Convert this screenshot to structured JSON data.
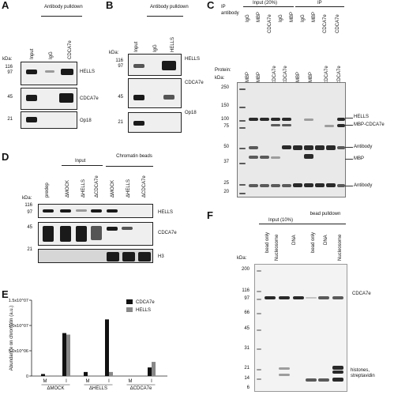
{
  "panels": {
    "A": {
      "letter": "A",
      "header": "Antibody pulldown",
      "lanes": [
        "Input",
        "IgG",
        "CDCA7e"
      ],
      "kda": "kDa:",
      "markers": [
        "116",
        "97",
        "45",
        "21"
      ],
      "bands": [
        "HELLS",
        "CDCA7e",
        "Op18"
      ]
    },
    "B": {
      "letter": "B",
      "header": "Antibody pulldown",
      "lanes": [
        "Input",
        "IgG",
        "HELLS"
      ],
      "kda": "kDa:",
      "markers": [
        "116",
        "97",
        "45",
        "21"
      ],
      "bands": [
        "HELLS",
        "CDCA7e",
        "Op18"
      ]
    },
    "C": {
      "letter": "C",
      "ip_label": "IP",
      "antibody_label": "antibody",
      "group_input": "Input (20%)",
      "group_ip": "IP",
      "ip_lanes": [
        "IgG",
        "MBP",
        "IgG",
        "MBP",
        "IgG",
        "MBP"
      ],
      "ip_lanes2": [
        "CDCA7e",
        "CDCA7e",
        "CDCA7e"
      ],
      "protein_label": "Protein:",
      "protein_lanes": [
        "MBP",
        "MBP",
        "MBP-CDCA7e",
        "MBP-CDCA7e",
        "MBP",
        "MBP",
        "MBP-CDCA7e",
        "MBP-CDCA7e"
      ],
      "kda": "kDa:",
      "markers": [
        "250",
        "150",
        "100",
        "75",
        "50",
        "37",
        "25",
        "20"
      ],
      "bands": [
        "HELLS",
        "MBP-CDCA7e",
        "Antibody",
        "MBP",
        "Antibody"
      ]
    },
    "D": {
      "letter": "D",
      "group_input": "Input",
      "group_beads": "Chromatin beads",
      "lanes": [
        "predep",
        "ΔMOCK",
        "ΔHELLS",
        "ΔCDCA7e",
        "ΔMOCK",
        "ΔHELLS",
        "ΔCDCA7e"
      ],
      "kda": "kDa:",
      "markers": [
        "116",
        "97",
        "45",
        "21"
      ],
      "bands": [
        "HELLS",
        "CDCA7e",
        "H3"
      ]
    },
    "E": {
      "letter": "E",
      "ylabel": "Abundance on chromatin (a.u.)"
    },
    "F": {
      "letter": "F",
      "group_input": "Input (10%)",
      "group_pulldown": "bead pulldown",
      "lanes": [
        "bead only",
        "Nucleosome",
        "DNA",
        "bead only",
        "DNA",
        "Nucleosome"
      ],
      "kda": "kDa:",
      "markers": [
        "200",
        "116",
        "97",
        "66",
        "45",
        "31",
        "21",
        "14",
        "6"
      ],
      "bands": [
        "CDCA7e",
        "histones, streptavidin"
      ]
    }
  },
  "colors": {
    "cdca7e": "#111111",
    "hells": "#888888"
  },
  "chart_data": {
    "type": "bar",
    "title": "",
    "xlabel": "",
    "ylabel": "Abundance on chromatin (a.u.)",
    "yticks": [
      "0",
      "5.0x10^06",
      "1.0x10^07",
      "1.5x10^07"
    ],
    "ylim": [
      0,
      15000000
    ],
    "groups": [
      "ΔMOCK",
      "ΔHELLS",
      "ΔCDCA7e"
    ],
    "categories": [
      "M",
      "I",
      "M",
      "I",
      "M",
      "I"
    ],
    "legend_position": "top-right",
    "series": [
      {
        "name": "CDCA7e",
        "color": "#111111",
        "values": [
          400000,
          8500000,
          800000,
          11200000,
          0,
          1700000
        ]
      },
      {
        "name": "HELLS",
        "color": "#888888",
        "values": [
          100000,
          8200000,
          0,
          800000,
          0,
          2800000
        ]
      }
    ]
  }
}
